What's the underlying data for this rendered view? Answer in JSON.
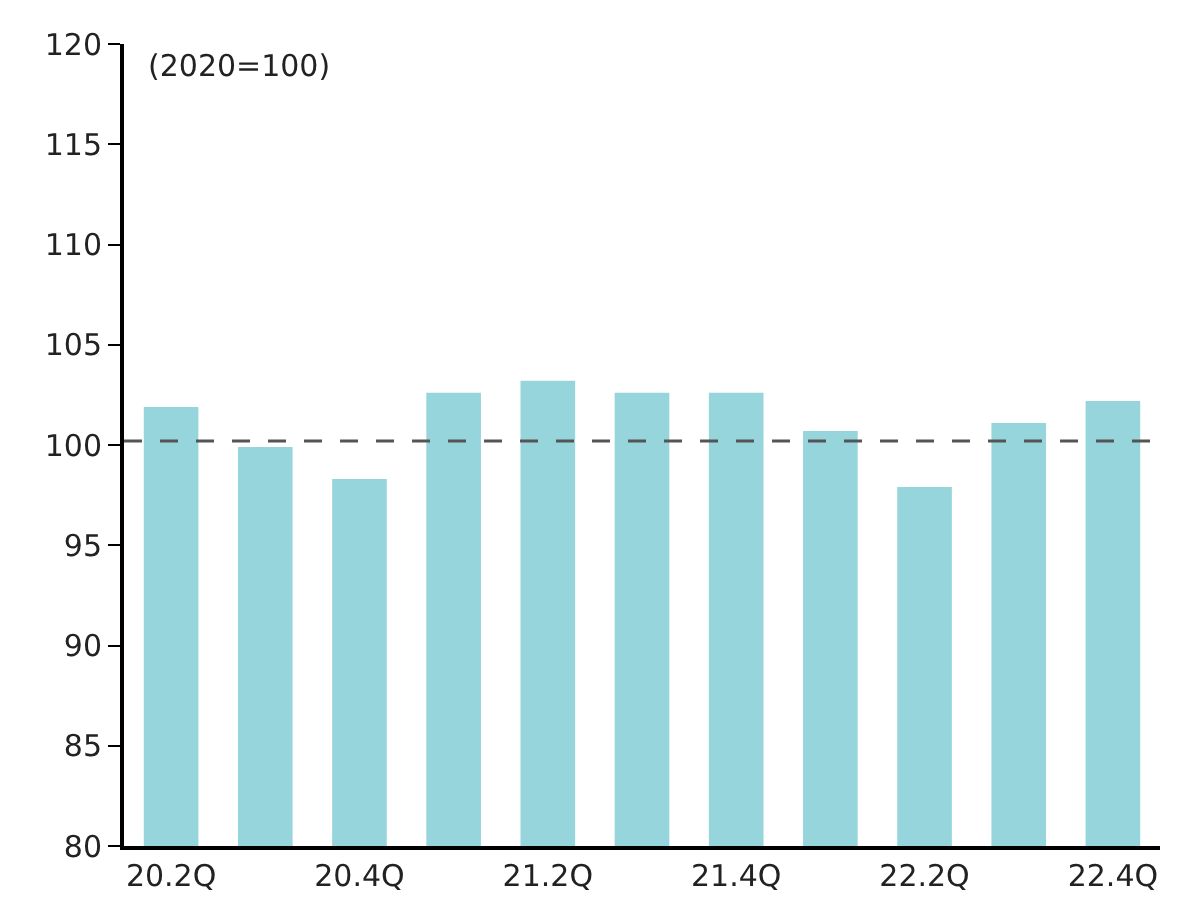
{
  "chart_data": {
    "type": "bar",
    "categories": [
      "20.2Q",
      null,
      "20.4Q",
      null,
      "21.2Q",
      null,
      "21.4Q",
      null,
      "22.2Q",
      null,
      "22.4Q"
    ],
    "values": [
      101.9,
      99.9,
      98.3,
      102.6,
      103.2,
      102.6,
      102.6,
      100.7,
      97.9,
      101.1,
      102.2
    ],
    "color": "#96d5db",
    "ylim": [
      80,
      120
    ],
    "yticks": [
      80,
      85,
      90,
      95,
      100,
      105,
      110,
      115,
      120
    ],
    "legend": false,
    "ref_lines": [
      {
        "axis": "y",
        "value": 100.2,
        "color": "#555555",
        "line_style": "dashed"
      }
    ],
    "annotations": [
      "(2020=100)"
    ]
  }
}
